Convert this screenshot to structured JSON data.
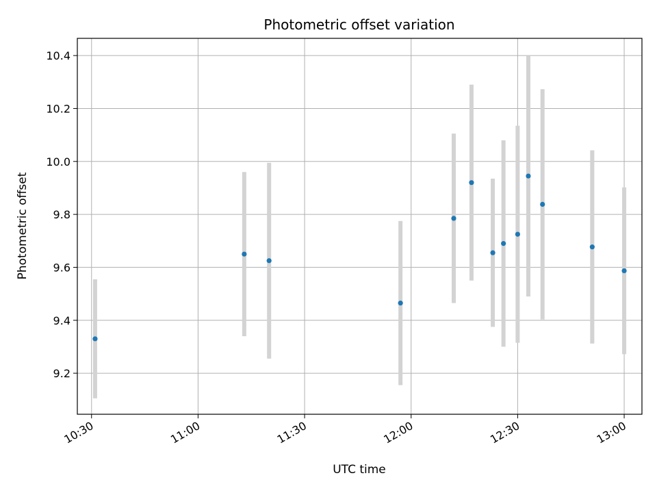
{
  "chart_data": {
    "type": "scatter",
    "title": "Photometric offset variation",
    "xlabel": "UTC time",
    "ylabel": "Photometric offset",
    "grid": true,
    "x_unit": "UTC time (HH:MM)",
    "xlim": [
      "10:26",
      "13:05"
    ],
    "ylim": [
      9.045,
      10.465
    ],
    "x_ticks": [
      "10:30",
      "11:00",
      "11:30",
      "12:00",
      "12:30",
      "13:00"
    ],
    "y_ticks": [
      9.2,
      9.4,
      9.6,
      9.8,
      10.0,
      10.2,
      10.4
    ],
    "y_tick_labels": [
      "9.2",
      "9.4",
      "9.6",
      "9.8",
      "10.0",
      "10.2",
      "10.4"
    ],
    "marker_color": "#1f77b4",
    "errorbar_color": "#d3d3d3",
    "series": [
      {
        "points": [
          {
            "x": "10:31",
            "y": 9.33,
            "err": 0.225
          },
          {
            "x": "11:13",
            "y": 9.65,
            "err": 0.31
          },
          {
            "x": "11:20",
            "y": 9.625,
            "err": 0.37
          },
          {
            "x": "11:57",
            "y": 9.465,
            "err": 0.31
          },
          {
            "x": "12:12",
            "y": 9.785,
            "err": 0.32
          },
          {
            "x": "12:17",
            "y": 9.92,
            "err": 0.37
          },
          {
            "x": "12:23",
            "y": 9.655,
            "err": 0.28
          },
          {
            "x": "12:26",
            "y": 9.69,
            "err": 0.39
          },
          {
            "x": "12:30",
            "y": 9.725,
            "err": 0.41
          },
          {
            "x": "12:33",
            "y": 9.945,
            "err": 0.455
          },
          {
            "x": "12:37",
            "y": 9.838,
            "err": 0.435
          },
          {
            "x": "12:51",
            "y": 9.677,
            "err": 0.365
          },
          {
            "x": "13:00",
            "y": 9.587,
            "err": 0.315
          }
        ]
      }
    ]
  }
}
